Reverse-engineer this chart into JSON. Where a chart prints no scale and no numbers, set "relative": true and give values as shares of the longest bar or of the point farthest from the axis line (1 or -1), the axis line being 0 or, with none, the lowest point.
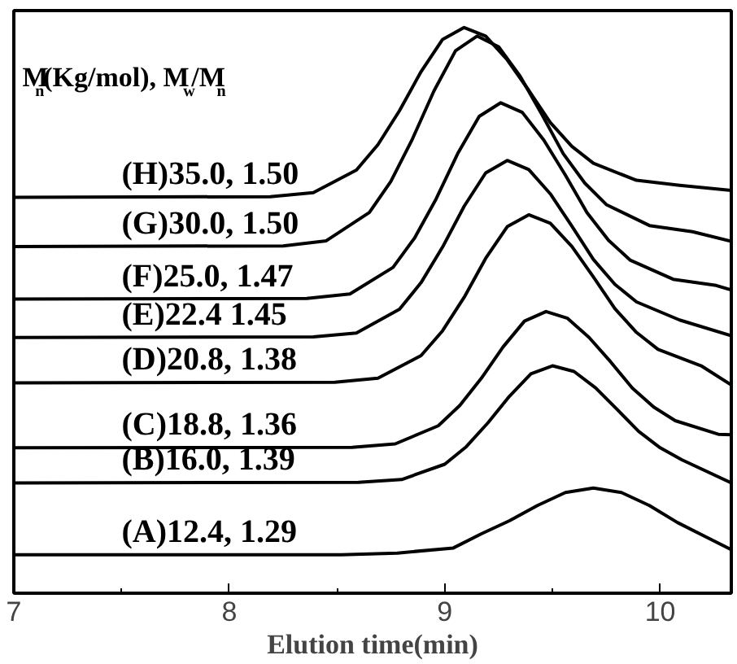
{
  "chart_data": {
    "type": "line",
    "relative": true,
    "xlabel": "Elution time(min)",
    "xlim": [
      7,
      10.33
    ],
    "xticks": [
      7,
      8,
      9,
      10
    ],
    "grid": false,
    "annotations": [
      "M$_{n}$(Kg/mol), M$_{w}$/M$_{n}$"
    ],
    "series": [
      {
        "name": "(H)35.0, 1.50",
        "color": "#000000",
        "x": [
          7.0,
          8.19,
          8.39,
          8.59,
          8.69,
          8.79,
          8.89,
          8.99,
          9.09,
          9.19,
          9.29,
          9.39,
          9.49,
          9.59,
          9.69,
          9.89,
          10.09,
          10.33
        ],
        "values": [
          0.7,
          0.701,
          0.708,
          0.748,
          0.793,
          0.853,
          0.922,
          0.979,
          1.0,
          0.985,
          0.943,
          0.889,
          0.832,
          0.79,
          0.76,
          0.73,
          0.721,
          0.712
        ]
      },
      {
        "name": "(G)30.0, 1.50",
        "color": "#000000",
        "x": [
          7.0,
          8.25,
          8.45,
          8.65,
          8.75,
          8.85,
          8.95,
          9.05,
          9.15,
          9.25,
          9.35,
          9.45,
          9.55,
          9.65,
          9.75,
          9.95,
          10.15,
          10.33
        ],
        "values": [
          0.613,
          0.614,
          0.623,
          0.673,
          0.728,
          0.803,
          0.888,
          0.959,
          0.985,
          0.966,
          0.914,
          0.847,
          0.777,
          0.725,
          0.687,
          0.65,
          0.639,
          0.622
        ]
      },
      {
        "name": "(F)25.0, 1.47",
        "color": "#000000",
        "x": [
          7.0,
          8.36,
          8.56,
          8.76,
          8.86,
          8.96,
          9.06,
          9.16,
          9.26,
          9.36,
          9.46,
          9.56,
          9.66,
          9.76,
          9.86,
          10.06,
          10.26,
          10.33
        ],
        "values": [
          0.52,
          0.521,
          0.529,
          0.576,
          0.628,
          0.697,
          0.777,
          0.843,
          0.867,
          0.85,
          0.801,
          0.739,
          0.673,
          0.624,
          0.589,
          0.555,
          0.544,
          0.536
        ]
      },
      {
        "name": "(E)22.4 1.45",
        "color": "#000000",
        "x": [
          7.0,
          8.39,
          8.59,
          8.79,
          8.89,
          8.99,
          9.09,
          9.19,
          9.29,
          9.39,
          9.49,
          9.59,
          9.69,
          9.79,
          9.89,
          10.09,
          10.33
        ],
        "values": [
          0.452,
          0.453,
          0.46,
          0.502,
          0.549,
          0.612,
          0.684,
          0.743,
          0.765,
          0.749,
          0.706,
          0.649,
          0.59,
          0.546,
          0.515,
          0.483,
          0.455
        ]
      },
      {
        "name": "(D)20.8, 1.38",
        "color": "#000000",
        "x": [
          7.0,
          8.49,
          8.69,
          8.89,
          8.99,
          9.09,
          9.19,
          9.29,
          9.39,
          9.49,
          9.59,
          9.69,
          9.79,
          9.89,
          9.99,
          10.19,
          10.33
        ],
        "values": [
          0.372,
          0.373,
          0.38,
          0.42,
          0.464,
          0.523,
          0.592,
          0.648,
          0.669,
          0.654,
          0.613,
          0.559,
          0.503,
          0.461,
          0.431,
          0.402,
          0.368
        ]
      },
      {
        "name": "(C)18.8, 1.36",
        "color": "#000000",
        "x": [
          7.0,
          8.57,
          8.77,
          8.97,
          9.07,
          9.17,
          9.27,
          9.37,
          9.47,
          9.57,
          9.67,
          9.77,
          9.87,
          9.97,
          10.07,
          10.27,
          10.33
        ],
        "values": [
          0.257,
          0.258,
          0.264,
          0.296,
          0.332,
          0.38,
          0.435,
          0.481,
          0.498,
          0.486,
          0.452,
          0.409,
          0.363,
          0.329,
          0.305,
          0.281,
          0.28
        ]
      },
      {
        "name": "(B)16.0, 1.39",
        "color": "#000000",
        "x": [
          7.0,
          8.6,
          8.8,
          9.0,
          9.1,
          9.2,
          9.3,
          9.4,
          9.5,
          9.6,
          9.7,
          9.8,
          9.9,
          10.0,
          10.1,
          10.33
        ],
        "values": [
          0.195,
          0.196,
          0.201,
          0.228,
          0.259,
          0.301,
          0.348,
          0.388,
          0.402,
          0.392,
          0.363,
          0.325,
          0.286,
          0.257,
          0.236,
          0.195
        ]
      },
      {
        "name": "(A)12.4, 1.29",
        "color": "#000000",
        "x": [
          7.0,
          8.52,
          8.78,
          9.04,
          9.17,
          9.3,
          9.43,
          9.56,
          9.69,
          9.82,
          9.95,
          10.08,
          10.21,
          10.33
        ],
        "values": [
          0.068,
          0.068,
          0.071,
          0.08,
          0.105,
          0.128,
          0.155,
          0.178,
          0.186,
          0.178,
          0.155,
          0.125,
          0.1,
          0.077
        ]
      }
    ]
  }
}
